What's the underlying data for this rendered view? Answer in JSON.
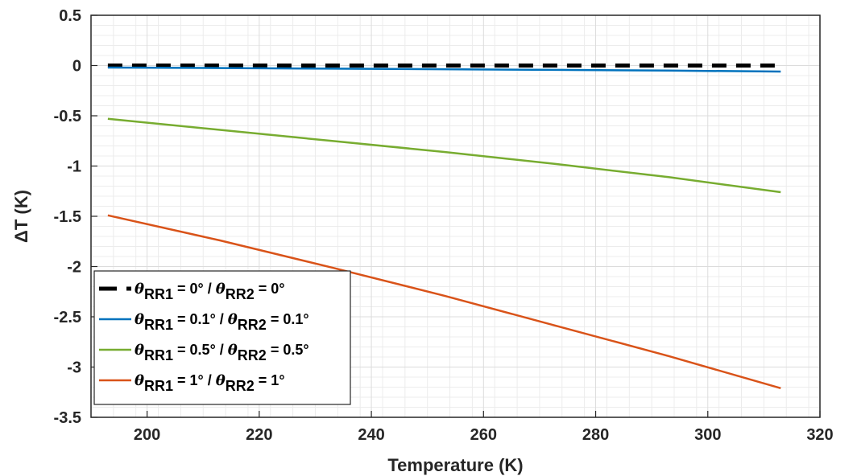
{
  "chart_data": {
    "type": "line",
    "xlabel": "Temperature (K)",
    "ylabel": "ΔT (K)",
    "xlim": [
      190,
      320
    ],
    "ylim": [
      -3.5,
      0.5
    ],
    "xticks": [
      200,
      220,
      240,
      260,
      280,
      300,
      320
    ],
    "yticks": [
      0.5,
      0,
      -0.5,
      -1,
      -1.5,
      -2,
      -2.5,
      -3,
      -3.5
    ],
    "grid": true,
    "minor_grid": true,
    "legend_position": "bottom-left",
    "series": [
      {
        "name": "θRR1 = 0° / θRR2 = 0°",
        "legend": {
          "sym1": "θ",
          "sub1": "RR1",
          "mid": " = 0° / ",
          "sym2": "θ",
          "sub2": "RR2",
          "end": " = 0°"
        },
        "color": "#000000",
        "dashed": true,
        "x": [
          193,
          313
        ],
        "y": [
          0,
          0
        ]
      },
      {
        "name": "θRR1 = 0.1° / θRR2 = 0.1°",
        "legend": {
          "sym1": "θ",
          "sub1": "RR1",
          "mid": " = 0.1° / ",
          "sym2": "θ",
          "sub2": "RR2",
          "end": " = 0.1°"
        },
        "color": "#0072BD",
        "dashed": false,
        "x": [
          193,
          213,
          233,
          253,
          273,
          293,
          313
        ],
        "y": [
          -0.02,
          -0.025,
          -0.031,
          -0.037,
          -0.043,
          -0.05,
          -0.06
        ]
      },
      {
        "name": "θRR1 = 0.5° / θRR2 = 0.5°",
        "legend": {
          "sym1": "θ",
          "sub1": "RR1",
          "mid": " = 0.5° / ",
          "sym2": "θ",
          "sub2": "RR2",
          "end": " = 0.5°"
        },
        "color": "#77AC30",
        "dashed": false,
        "x": [
          193,
          213,
          233,
          253,
          273,
          293,
          313
        ],
        "y": [
          -0.53,
          -0.64,
          -0.75,
          -0.86,
          -0.98,
          -1.11,
          -1.26
        ]
      },
      {
        "name": "θRR1 = 1° / θRR2 = 1°",
        "legend": {
          "sym1": "θ",
          "sub1": "RR1",
          "mid": " = 1° / ",
          "sym2": "θ",
          "sub2": "RR2",
          "end": " = 1°"
        },
        "color": "#D95319",
        "dashed": false,
        "x": [
          193,
          213,
          233,
          253,
          273,
          293,
          313
        ],
        "y": [
          -1.49,
          -1.74,
          -2.01,
          -2.29,
          -2.59,
          -2.89,
          -3.21
        ]
      }
    ]
  }
}
